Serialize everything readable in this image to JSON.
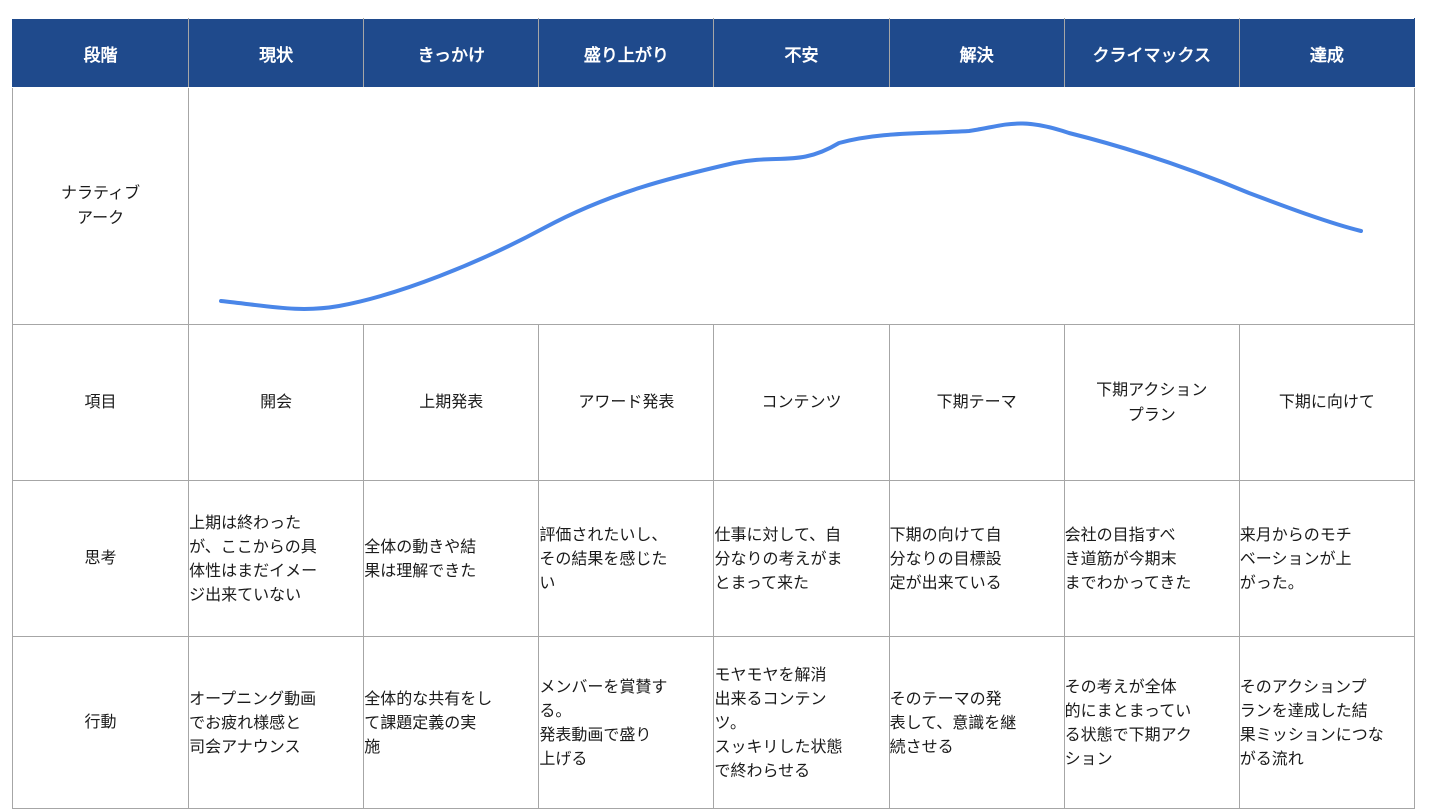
{
  "header": {
    "row_label": "段階",
    "stages": [
      "現状",
      "きっかけ",
      "盛り上がり",
      "不安",
      "解決",
      "クライマックス",
      "達成"
    ]
  },
  "arc": {
    "label": "ナラティブ\nアーク",
    "line_color": "#4a86e8"
  },
  "items": {
    "label": "項目",
    "values": [
      "開会",
      "上期発表",
      "アワード発表",
      "コンテンツ",
      "下期テーマ",
      "下期アクション\nプラン",
      "下期に向けて"
    ]
  },
  "thoughts": {
    "label": "思考",
    "values": [
      "上期は終わった\nが、ここからの具\n体性はまだイメー\nジ出来ていない",
      "全体の動きや結\n果は理解できた",
      "評価されたいし、\nその結果を感じた\nい",
      "仕事に対して、自\n分なりの考えがま\nとまって来た",
      "下期の向けて自\n分なりの目標設\n定が出来ている",
      "会社の目指すべ\nき道筋が今期末\nまでわかってきた",
      "来月からのモチ\nベーションが上\nがった。"
    ]
  },
  "actions": {
    "label": "行動",
    "values": [
      "オープニング動画\nでお疲れ様感と\n司会アナウンス",
      "全体的な共有をし\nて課題定義の実\n施",
      "メンバーを賞賛す\nる。\n発表動画で盛り\n上げる",
      "モヤモヤを解消\n出来るコンテン\nツ。\nスッキリした状態\nで終わらせる",
      "そのテーマの発\n表して、意識を継\n続させる",
      "その考えが全体\n的にまとまってい\nる状態で下期アク\nション",
      "そのアクションプ\nランを達成した結\n果ミッションにつな\nがる流れ"
    ]
  },
  "colors": {
    "header_bg": "#1f4a8c",
    "header_text": "#ffffff",
    "grid": "#a6a6a6"
  }
}
